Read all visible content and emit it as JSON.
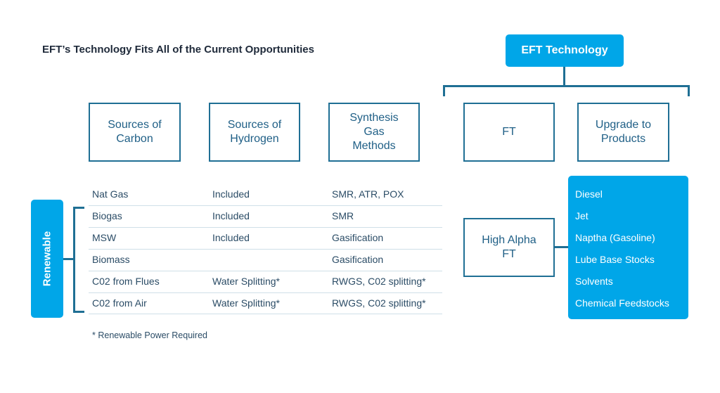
{
  "title": "EFT’s Technology Fits All of the Current Opportunities",
  "eft_technology": "EFT Technology",
  "headers": {
    "sources_carbon": "Sources of\nCarbon",
    "sources_hydrogen": "Sources of\nHydrogen",
    "synthesis_gas": "Synthesis\nGas\nMethods",
    "ft": "FT",
    "upgrade": "Upgrade to\nProducts"
  },
  "renewable_label": "Renewable",
  "rows": [
    {
      "carbon": "Nat Gas",
      "hydrogen": "Included",
      "method": "SMR, ATR, POX"
    },
    {
      "carbon": "Biogas",
      "hydrogen": "Included",
      "method": "SMR"
    },
    {
      "carbon": "MSW",
      "hydrogen": "Included",
      "method": "Gasification"
    },
    {
      "carbon": "Biomass",
      "hydrogen": "",
      "method": "Gasification"
    },
    {
      "carbon": "C02 from Flues",
      "hydrogen": "Water Splitting*",
      "method": "RWGS, C02 splitting*"
    },
    {
      "carbon": "C02 from Air",
      "hydrogen": "Water Splitting*",
      "method": "RWGS, C02 splitting*"
    }
  ],
  "high_alpha": "High Alpha\nFT",
  "products": [
    "Diesel",
    "Jet",
    "Naptha (Gasoline)",
    "Lube Base Stocks",
    "Solvents",
    "Chemical Feedstocks"
  ],
  "footnote": "* Renewable Power Required",
  "colors": {
    "accent": "#00a6e8",
    "outline": "#1f6f94",
    "text": "#2b4c66"
  }
}
